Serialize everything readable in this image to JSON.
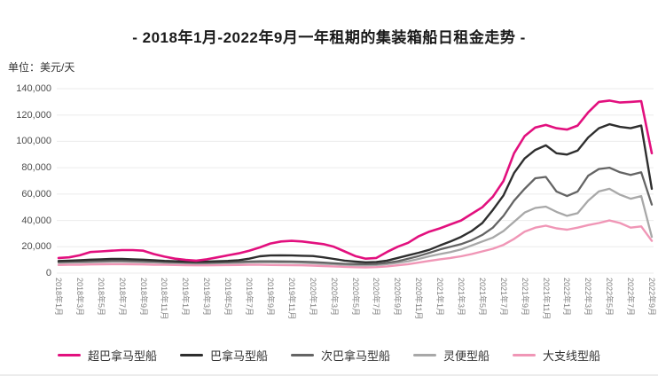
{
  "title": "- 2018年1月-2022年9月一年租期的集装箱船日租金走势 -",
  "unit_label": "单位：美元/天",
  "chart_data": {
    "type": "line",
    "title": "- 2018年1月-2022年9月一年租期的集装箱船日租金走势 -",
    "ylabel": "单位：美元/天",
    "ylim": [
      0,
      140000
    ],
    "y_tick_labels": [
      "140,000",
      "120,000",
      "100,000",
      "80,000",
      "60,000",
      "40,000",
      "20,000",
      "0"
    ],
    "y_tick_values": [
      140000,
      120000,
      100000,
      80000,
      60000,
      40000,
      20000,
      0
    ],
    "grid": "horizontal-only",
    "legend_position": "bottom",
    "x_start": "2018年1月",
    "x_end": "2022年9月",
    "months_total": 57,
    "x_tick_every_n_months": 2,
    "x_tick_labels": [
      "2018年1月",
      "2018年3月",
      "2018年5月",
      "2018年7月",
      "2018年9月",
      "2018年11月",
      "2019年1月",
      "2019年3月",
      "2019年5月",
      "2019年7月",
      "2019年9月",
      "2019年11月",
      "2020年1月",
      "2020年3月",
      "2020年5月",
      "2020年7月",
      "2020年9月",
      "2020年11月",
      "2021年1月",
      "2021年3月",
      "2021年5月",
      "2021年7月",
      "2021年9月",
      "2021年11月",
      "2022年1月",
      "2022年3月",
      "2022年5月",
      "2022年7月",
      "2022年9月"
    ],
    "series": [
      {
        "name": "超巴拿马型船",
        "color": "#E2107E",
        "line_width": 2.6,
        "values": [
          11500,
          12000,
          13500,
          16000,
          16500,
          17000,
          17500,
          17500,
          17000,
          14500,
          12500,
          11000,
          10000,
          9500,
          10500,
          12000,
          13500,
          15000,
          17000,
          19500,
          22500,
          24000,
          24500,
          24000,
          23000,
          22000,
          20000,
          16500,
          13000,
          11000,
          11500,
          16000,
          20000,
          23000,
          28000,
          31500,
          34000,
          37000,
          40000,
          45000,
          50000,
          58000,
          70000,
          91000,
          104000,
          110500,
          112500,
          110000,
          109000,
          112000,
          122000,
          130000,
          131000,
          129500,
          130000,
          130500,
          91000
        ]
      },
      {
        "name": "巴拿马型船",
        "color": "#2E2E2E",
        "line_width": 2.4,
        "values": [
          9200,
          9500,
          9800,
          10200,
          10500,
          10800,
          10800,
          10500,
          10200,
          9800,
          9300,
          9000,
          8800,
          8600,
          8800,
          9000,
          9300,
          9800,
          11000,
          12800,
          13400,
          13500,
          13400,
          13200,
          13000,
          12000,
          10800,
          9500,
          8800,
          8200,
          8500,
          9500,
          11500,
          13500,
          15500,
          17700,
          21000,
          24000,
          27500,
          32000,
          38000,
          48000,
          59000,
          76000,
          87000,
          93500,
          97000,
          91000,
          90000,
          93000,
          103000,
          110000,
          113000,
          111000,
          110000,
          112000,
          64000
        ]
      },
      {
        "name": "次巴拿马型船",
        "color": "#646464",
        "line_width": 2.3,
        "values": [
          8500,
          8700,
          8800,
          9000,
          9200,
          9400,
          9400,
          9200,
          9000,
          8800,
          8500,
          8300,
          8000,
          7800,
          7900,
          8100,
          8300,
          8500,
          8800,
          9000,
          9000,
          8900,
          8800,
          8600,
          8400,
          8000,
          7500,
          7100,
          6900,
          6800,
          7000,
          7800,
          9000,
          10900,
          13000,
          15400,
          18000,
          20000,
          22000,
          25000,
          29000,
          34500,
          43500,
          55000,
          64000,
          72000,
          73000,
          62000,
          58500,
          62000,
          74000,
          79000,
          80000,
          76500,
          74500,
          76500,
          52000
        ]
      },
      {
        "name": "灵便型船",
        "color": "#A8A8A8",
        "line_width": 2.3,
        "values": [
          7800,
          8000,
          8100,
          8300,
          8500,
          8600,
          8600,
          8500,
          8300,
          8100,
          7900,
          7700,
          7500,
          7300,
          7400,
          7500,
          7700,
          7900,
          8100,
          8200,
          8200,
          8100,
          8000,
          7800,
          7500,
          7100,
          6700,
          6300,
          6000,
          5900,
          6100,
          6800,
          7800,
          9000,
          10800,
          12800,
          14500,
          16000,
          18000,
          21000,
          24000,
          27000,
          32000,
          39000,
          46000,
          49500,
          50500,
          46500,
          43500,
          45500,
          55000,
          62000,
          64000,
          59500,
          56500,
          58500,
          27500
        ]
      },
      {
        "name": "大支线型船",
        "color": "#F096B6",
        "line_width": 2.4,
        "values": [
          6200,
          6300,
          6400,
          6600,
          6700,
          6800,
          6800,
          6700,
          6600,
          6400,
          6300,
          6200,
          6000,
          5900,
          5900,
          6000,
          6100,
          6200,
          6300,
          6300,
          6200,
          6100,
          6000,
          5900,
          5700,
          5400,
          5100,
          4800,
          4500,
          4400,
          4600,
          5100,
          5900,
          6800,
          8000,
          9300,
          10500,
          11500,
          12800,
          14500,
          16500,
          18500,
          21500,
          26000,
          31500,
          34500,
          36000,
          34000,
          33000,
          34500,
          36500,
          38000,
          40000,
          38000,
          34500,
          35500,
          24500
        ]
      }
    ],
    "colors": {
      "grid": "#ebebeb",
      "axis_text": "#808080",
      "y_axis_text": "#4d4d4d",
      "title_text": "#1a1a1a"
    }
  }
}
